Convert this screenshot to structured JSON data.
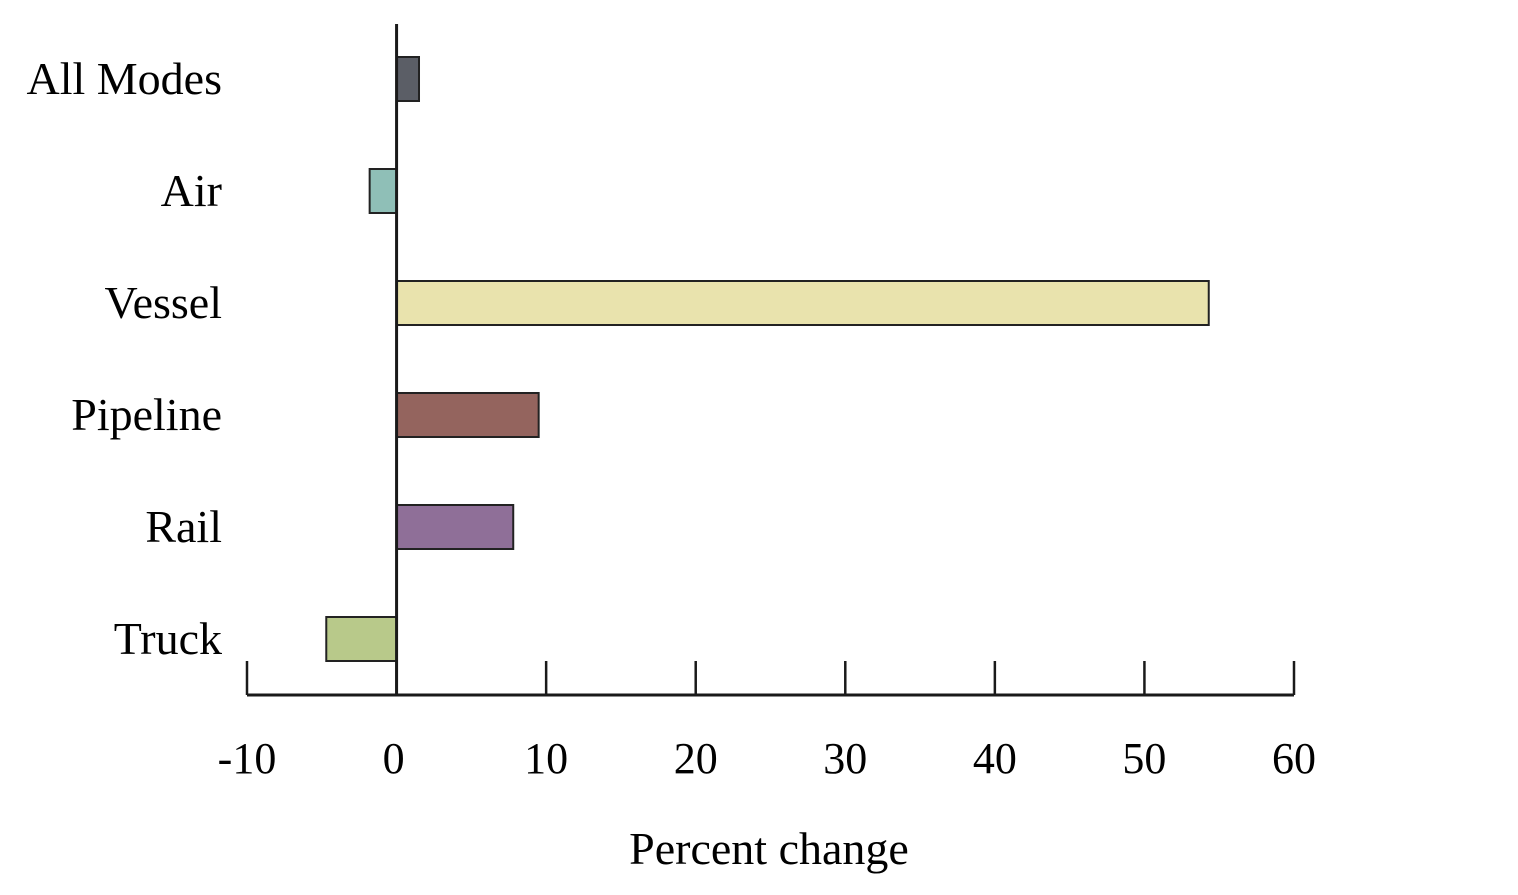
{
  "chart_data": {
    "type": "bar",
    "orientation": "horizontal",
    "categories": [
      "All Modes",
      "Air",
      "Vessel",
      "Pipeline",
      "Rail",
      "Truck"
    ],
    "values": [
      1.5,
      -1.8,
      54.3,
      9.5,
      7.8,
      -4.7
    ],
    "colors": [
      "#5b5e66",
      "#8fbfb7",
      "#e9e3ad",
      "#94645e",
      "#8f6f98",
      "#b8c98a"
    ],
    "xlabel": "Percent change",
    "ylabel": "",
    "title": "",
    "xlim": [
      -10,
      60
    ],
    "xticks": [
      -10,
      0,
      10,
      20,
      30,
      40,
      50,
      60
    ],
    "xtick_labels": [
      "-10",
      "0",
      "10",
      "20",
      "30",
      "40",
      "50",
      "60"
    ],
    "grid": false,
    "legend": "none"
  }
}
